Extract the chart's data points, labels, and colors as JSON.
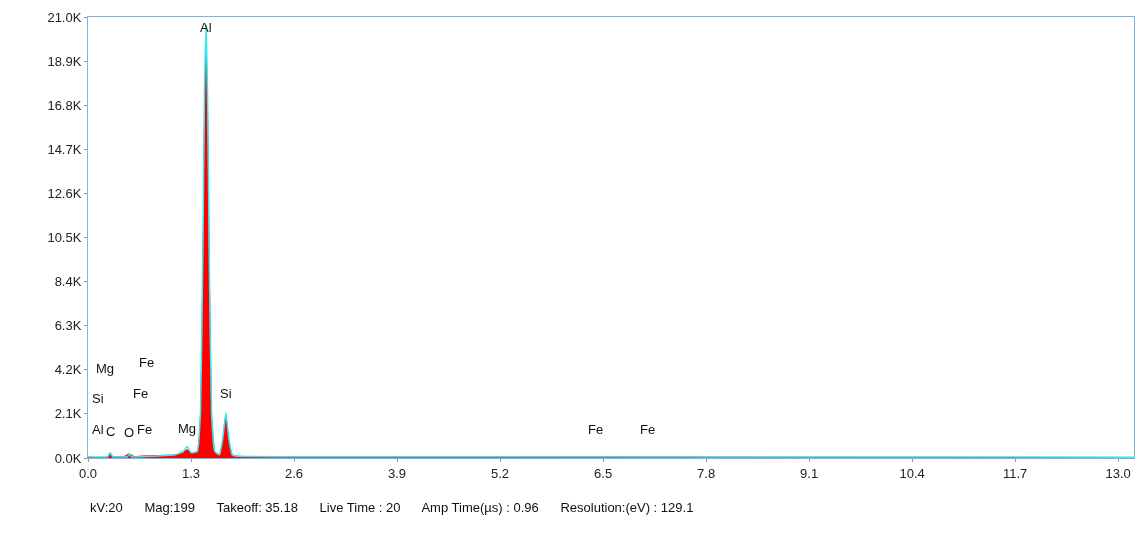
{
  "chart_data": {
    "type": "area",
    "xlim": [
      0,
      13.2
    ],
    "ylim": [
      0,
      21000
    ],
    "xticks": [
      {
        "value": 0,
        "label": "0.0"
      },
      {
        "value": 1.3,
        "label": "1.3"
      },
      {
        "value": 2.6,
        "label": "2.6"
      },
      {
        "value": 3.9,
        "label": "3.9"
      },
      {
        "value": 5.2,
        "label": "5.2"
      },
      {
        "value": 6.5,
        "label": "6.5"
      },
      {
        "value": 7.8,
        "label": "7.8"
      },
      {
        "value": 9.1,
        "label": "9.1"
      },
      {
        "value": 10.4,
        "label": "10.4"
      },
      {
        "value": 11.7,
        "label": "11.7"
      },
      {
        "value": 13,
        "label": "13.0"
      }
    ],
    "yticks": [
      {
        "value": 0,
        "label": "0.0K"
      },
      {
        "value": 2100,
        "label": "2.1K"
      },
      {
        "value": 4200,
        "label": "4.2K"
      },
      {
        "value": 6300,
        "label": "6.3K"
      },
      {
        "value": 8400,
        "label": "8.4K"
      },
      {
        "value": 10500,
        "label": "10.5K"
      },
      {
        "value": 12600,
        "label": "12.6K"
      },
      {
        "value": 14700,
        "label": "14.7K"
      },
      {
        "value": 16800,
        "label": "16.8K"
      },
      {
        "value": 18900,
        "label": "18.9K"
      },
      {
        "value": 21000,
        "label": "21.0K"
      }
    ],
    "series": [
      {
        "color": "#ff0000",
        "x": [
          0,
          0.1,
          0.2,
          0.25,
          0.28,
          0.31,
          0.45,
          0.52,
          0.58,
          0.7,
          0.9,
          1.1,
          1.2,
          1.25,
          1.3,
          1.38,
          1.42,
          1.45,
          1.47,
          1.49,
          1.51,
          1.53,
          1.56,
          1.6,
          1.66,
          1.7,
          1.74,
          1.78,
          1.82,
          1.9,
          2.5,
          4,
          6.4,
          7,
          8,
          10,
          13.2
        ],
        "values": [
          20,
          20,
          30,
          60,
          250,
          60,
          60,
          200,
          70,
          100,
          120,
          150,
          250,
          400,
          250,
          300,
          2000,
          9000,
          16000,
          19500,
          16000,
          9000,
          2000,
          300,
          150,
          800,
          2050,
          800,
          150,
          80,
          60,
          50,
          60,
          50,
          40,
          30,
          20
        ]
      },
      {
        "type": "line",
        "color": "#33e6f0",
        "x": [
          0,
          0.25,
          0.28,
          0.31,
          0.5,
          0.52,
          0.55,
          1.1,
          1.2,
          1.25,
          1.3,
          1.38,
          1.42,
          1.45,
          1.47,
          1.49,
          1.51,
          1.53,
          1.56,
          1.6,
          1.66,
          1.7,
          1.74,
          1.78,
          1.82,
          1.9,
          2.5,
          13.2
        ],
        "values": [
          60,
          60,
          250,
          60,
          60,
          200,
          60,
          150,
          300,
          550,
          250,
          300,
          2200,
          10000,
          17500,
          20600,
          17000,
          9500,
          2100,
          300,
          150,
          900,
          2150,
          850,
          150,
          80,
          60,
          40
        ]
      }
    ],
    "annotations": [
      {
        "text": "Al",
        "x": 1.49,
        "y": 19500
      },
      {
        "text": "Si",
        "x": 1.74,
        "y": 2050
      },
      {
        "text": "Mg",
        "x": 1.25,
        "y": 400
      },
      {
        "text": "C",
        "x": 0.28,
        "y": 250
      },
      {
        "text": "O",
        "x": 0.52,
        "y": 200
      },
      "Al",
      "Fe",
      "Si",
      "Fe",
      "Mg",
      "Fe",
      "Fe",
      "Fe",
      "kV:20      Mag:199      Takeoff: 35.18      Live Time : 20      Amp Time(µs) : 0.96      Resolution:(eV) : 129.1"
    ]
  }
}
